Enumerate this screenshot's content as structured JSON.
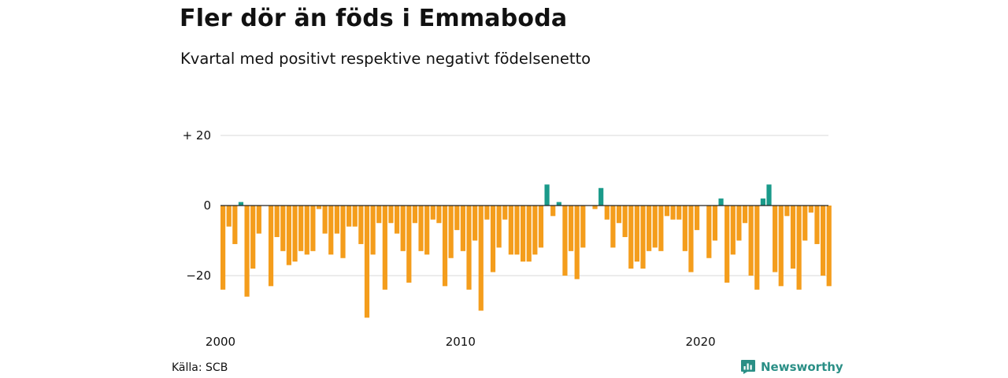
{
  "title": "Fler dör än föds i Emmaboda",
  "subtitle": "Kvartal med positivt respektive negativt födelsenetto",
  "source": "Källa: SCB",
  "brand": "Newsworthy",
  "colors": {
    "positive": "#1a9a8a",
    "negative": "#f49d1c",
    "brand": "#2a8f86"
  },
  "chart_data": {
    "type": "bar",
    "title": "Fler dör än föds i Emmaboda",
    "subtitle": "Kvartal med positivt respektive negativt födelsenetto",
    "x_label": "",
    "y_label": "",
    "ylim": [
      -32,
      20
    ],
    "y_ticks": [
      {
        "value": 20,
        "label": "+ 20"
      },
      {
        "value": 0,
        "label": "0"
      },
      {
        "value": -20,
        "label": "−20"
      }
    ],
    "x_ticks": [
      {
        "year": 2000,
        "label": "2000"
      },
      {
        "year": 2010,
        "label": "2010"
      },
      {
        "year": 2020,
        "label": "2020"
      }
    ],
    "grid": true,
    "first_period": "2000 Q1",
    "last_period": "2025 Q2",
    "period": "quarter",
    "values": [
      -24,
      -6,
      -11,
      1,
      -26,
      -18,
      -8,
      0,
      -23,
      -9,
      -13,
      -17,
      -16,
      -13,
      -14,
      -13,
      -1,
      -8,
      -14,
      -8,
      -15,
      -6,
      -6,
      -11,
      -32,
      -14,
      -5,
      -24,
      -5,
      -8,
      -13,
      -22,
      -5,
      -13,
      -14,
      -4,
      -5,
      -23,
      -15,
      -7,
      -13,
      -24,
      -10,
      -30,
      -4,
      -19,
      -12,
      -4,
      -14,
      -14,
      -16,
      -16,
      -14,
      -12,
      6,
      -3,
      1,
      -20,
      -13,
      -21,
      -12,
      0,
      -1,
      5,
      -4,
      -12,
      -5,
      -9,
      -18,
      -16,
      -18,
      -13,
      -12,
      -13,
      -3,
      -4,
      -4,
      -13,
      -19,
      -7,
      0,
      -15,
      -10,
      2,
      -22,
      -14,
      -10,
      -5,
      -20,
      -24,
      2,
      6,
      -19,
      -23,
      -3,
      -18,
      -24,
      -10,
      -2,
      -11,
      -20,
      -23
    ]
  }
}
